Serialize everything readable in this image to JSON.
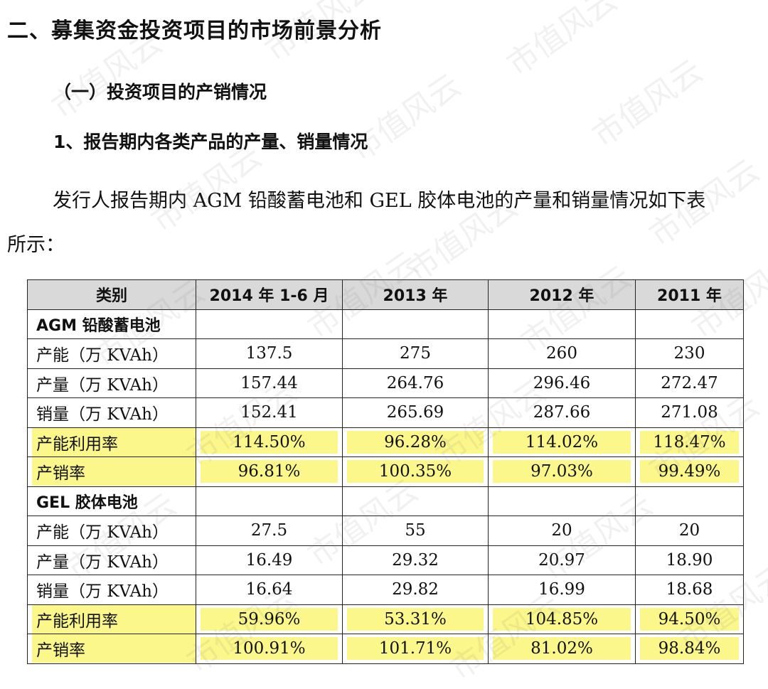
{
  "heading_main": "二、募集资金投资项目的市场前景分析",
  "heading_sub": "（一）投资项目的产销情况",
  "heading_item": "1、报告期内各类产品的产量、销量情况",
  "paragraph_line1": "发行人报告期内 AGM 铅酸蓄电池和 GEL 胶体电池的产量和销量情况如下表",
  "paragraph_line2": "所示：",
  "watermark": "市值风云",
  "highlight_color": "#fbf78a",
  "table": {
    "headers": [
      "类别",
      "2014 年 1-6 月",
      "2013 年",
      "2012 年",
      "2011 年"
    ],
    "groups": [
      {
        "name": "AGM 铅酸蓄电池",
        "rows": [
          {
            "label": "产能（万 KVAh）",
            "values": [
              "137.5",
              "275",
              "260",
              "230"
            ],
            "highlight": false
          },
          {
            "label": "产量（万 KVAh）",
            "values": [
              "157.44",
              "264.76",
              "296.46",
              "272.47"
            ],
            "highlight": false
          },
          {
            "label": "销量（万 KVAh）",
            "values": [
              "152.41",
              "265.69",
              "287.66",
              "271.08"
            ],
            "highlight": false
          },
          {
            "label": "产能利用率",
            "values": [
              "114.50%",
              "96.28%",
              "114.02%",
              "118.47%"
            ],
            "highlight": true
          },
          {
            "label": "产销率",
            "values": [
              "96.81%",
              "100.35%",
              "97.03%",
              "99.49%"
            ],
            "highlight": true
          }
        ]
      },
      {
        "name": "GEL 胶体电池",
        "rows": [
          {
            "label": "产能（万 KVAh）",
            "values": [
              "27.5",
              "55",
              "20",
              "20"
            ],
            "highlight": false
          },
          {
            "label": "产量（万 KVAh）",
            "values": [
              "16.49",
              "29.32",
              "20.97",
              "18.90"
            ],
            "highlight": false
          },
          {
            "label": "销量（万 KVAh）",
            "values": [
              "16.64",
              "29.82",
              "16.99",
              "18.68"
            ],
            "highlight": false
          },
          {
            "label": "产能利用率",
            "values": [
              "59.96%",
              "53.31%",
              "104.85%",
              "94.50%"
            ],
            "highlight": true
          },
          {
            "label": "产销率",
            "values": [
              "100.91%",
              "101.71%",
              "81.02%",
              "98.84%"
            ],
            "highlight": true
          }
        ]
      }
    ]
  }
}
